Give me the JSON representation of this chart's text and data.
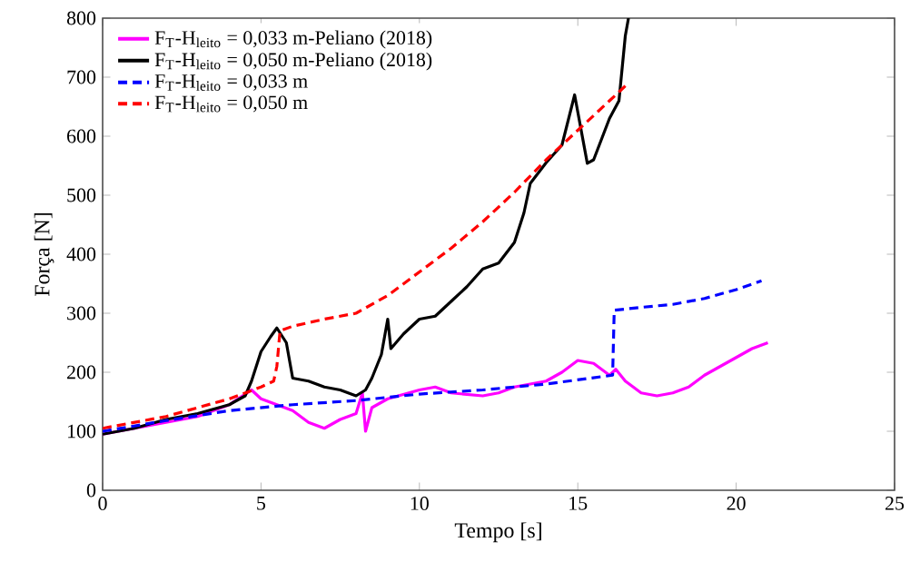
{
  "chart_data": {
    "type": "line",
    "xlabel": "Tempo [s]",
    "ylabel": "Força [N]",
    "xlim": [
      0,
      25
    ],
    "ylim": [
      0,
      800
    ],
    "xticks": [
      0,
      5,
      10,
      15,
      20,
      25
    ],
    "yticks": [
      0,
      100,
      200,
      300,
      400,
      500,
      600,
      700,
      800
    ],
    "grid": false,
    "legend": "top left",
    "marker": "none",
    "series": [
      {
        "name": "F$_{T}$-H$_{leito}$ = 0,033 m-Peliano (2018)",
        "color": "#ff00ff",
        "line_style": "solid",
        "x": [
          0,
          1,
          2,
          3,
          4,
          4.7,
          5,
          5.5,
          6,
          6.5,
          7,
          7.5,
          8,
          8.2,
          8.3,
          8.5,
          9,
          10,
          10.5,
          11,
          12,
          12.5,
          13,
          14,
          14.5,
          15,
          15.5,
          16,
          16.2,
          16.5,
          17,
          17.5,
          18,
          18.5,
          19,
          19.5,
          20,
          20.5,
          21
        ],
        "values": [
          95,
          105,
          115,
          125,
          145,
          170,
          155,
          145,
          135,
          115,
          105,
          120,
          130,
          165,
          100,
          140,
          155,
          170,
          175,
          165,
          160,
          165,
          175,
          185,
          200,
          220,
          215,
          195,
          205,
          185,
          165,
          160,
          165,
          175,
          195,
          210,
          225,
          240,
          250
        ]
      },
      {
        "name": "F$_{T}$-H$_{leito}$ = 0,050 m-Peliano (2018)",
        "color": "#000000",
        "line_style": "solid",
        "x": [
          0,
          1,
          2,
          3,
          4,
          4.5,
          4.7,
          5,
          5.3,
          5.5,
          5.8,
          6,
          6.5,
          7,
          7.5,
          8,
          8.3,
          8.5,
          8.8,
          9,
          9.1,
          9.5,
          10,
          10.5,
          11,
          11.5,
          12,
          12.5,
          13,
          13.3,
          13.5,
          14,
          14.5,
          14.9,
          15.3,
          15.5,
          16,
          16.3,
          16.5,
          16.6
        ],
        "values": [
          95,
          105,
          120,
          130,
          145,
          160,
          185,
          235,
          260,
          275,
          250,
          190,
          185,
          175,
          170,
          160,
          170,
          190,
          230,
          290,
          240,
          265,
          290,
          295,
          320,
          345,
          375,
          385,
          420,
          470,
          520,
          555,
          585,
          670,
          554,
          560,
          630,
          660,
          770,
          800
        ]
      },
      {
        "name": "F$_{T}$-H$_{leito}$ = 0,033 m",
        "color": "#0000ff",
        "line_style": "dashed",
        "x": [
          0,
          2,
          4,
          6,
          8,
          10,
          12,
          14,
          16.1,
          16.15,
          17,
          18,
          19,
          20,
          20.8
        ],
        "values": [
          100,
          118,
          135,
          145,
          152,
          163,
          170,
          180,
          195,
          305,
          310,
          315,
          325,
          340,
          355
        ]
      },
      {
        "name": "F$_{T}$-H$_{leito}$ = 0,050 m",
        "color": "#ff0000",
        "line_style": "dashed",
        "x": [
          0,
          2,
          4,
          5,
          5.4,
          5.5,
          5.6,
          6,
          7,
          8,
          9,
          10,
          11,
          12,
          13,
          14,
          15,
          16,
          16.6
        ],
        "values": [
          105,
          125,
          155,
          175,
          185,
          210,
          270,
          278,
          290,
          300,
          330,
          370,
          410,
          455,
          505,
          560,
          610,
          660,
          690
        ]
      }
    ]
  }
}
